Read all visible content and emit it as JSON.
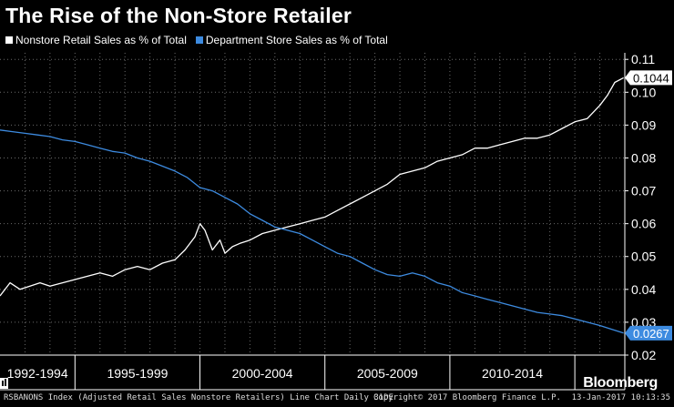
{
  "colors": {
    "nonstore": "#ffffff",
    "department": "#3d8be0",
    "grid": "#6a6a6a",
    "background": "#000000"
  },
  "brand": "Bloomberg",
  "brand_icon": "bloomberg-terminal-icon",
  "footer": {
    "left": "RSBANONS Index (Adjusted Retail Sales Nonstore Retailers) Line Chart  Daily 31DE",
    "center": "Copyright© 2017 Bloomberg Finance L.P.",
    "right": "13-Jan-2017 10:13:35"
  },
  "chart_data": {
    "type": "line",
    "title": "The Rise of the Non-Store Retailer",
    "xlim": [
      1992.0,
      2017.0
    ],
    "ylim": [
      0.02,
      0.112
    ],
    "y_ticks": [
      0.02,
      0.03,
      0.04,
      0.05,
      0.06,
      0.07,
      0.08,
      0.09,
      0.1,
      0.11
    ],
    "y_tick_labels": [
      "0.02",
      "0.03",
      "0.04",
      "0.05",
      "0.06",
      "0.07",
      "0.08",
      "0.09",
      "0.10",
      "0.11"
    ],
    "x_groups": [
      {
        "label": "1992-1994",
        "from": 1992.0,
        "to": 1995.0
      },
      {
        "label": "1995-1999",
        "from": 1995.0,
        "to": 2000.0
      },
      {
        "label": "2000-2004",
        "from": 2000.0,
        "to": 2005.0
      },
      {
        "label": "2005-2009",
        "from": 2005.0,
        "to": 2010.0
      },
      {
        "label": "2010-2014",
        "from": 2010.0,
        "to": 2015.0
      },
      {
        "label": "",
        "from": 2015.0,
        "to": 2017.0
      }
    ],
    "grid": true,
    "legend_position": "top-left",
    "series": [
      {
        "name": "Nonstore Retail Sales as % of Total",
        "color": "#ffffff",
        "last_value_label": "0.1044",
        "x": [
          1992.0,
          1992.4,
          1992.8,
          1993.2,
          1993.6,
          1994.0,
          1994.5,
          1995.0,
          1995.5,
          1996.0,
          1996.5,
          1997.0,
          1997.5,
          1998.0,
          1998.5,
          1999.0,
          1999.4,
          1999.8,
          2000.0,
          2000.2,
          2000.5,
          2000.8,
          2001.0,
          2001.3,
          2001.6,
          2002.0,
          2002.5,
          2003.0,
          2003.5,
          2004.0,
          2004.5,
          2005.0,
          2005.5,
          2006.0,
          2006.5,
          2007.0,
          2007.5,
          2008.0,
          2008.5,
          2009.0,
          2009.5,
          2010.0,
          2010.5,
          2011.0,
          2011.5,
          2012.0,
          2012.5,
          2013.0,
          2013.5,
          2014.0,
          2014.5,
          2015.0,
          2015.5,
          2016.0,
          2016.3,
          2016.6,
          2016.95
        ],
        "y": [
          0.038,
          0.042,
          0.04,
          0.041,
          0.042,
          0.041,
          0.042,
          0.043,
          0.044,
          0.045,
          0.044,
          0.046,
          0.047,
          0.046,
          0.048,
          0.049,
          0.052,
          0.056,
          0.06,
          0.058,
          0.052,
          0.055,
          0.051,
          0.053,
          0.054,
          0.055,
          0.057,
          0.058,
          0.059,
          0.06,
          0.061,
          0.062,
          0.064,
          0.066,
          0.068,
          0.07,
          0.072,
          0.075,
          0.076,
          0.077,
          0.079,
          0.08,
          0.081,
          0.083,
          0.083,
          0.084,
          0.085,
          0.086,
          0.086,
          0.087,
          0.089,
          0.091,
          0.092,
          0.096,
          0.099,
          0.103,
          0.1044
        ]
      },
      {
        "name": "Department Store Sales as % of Total",
        "color": "#3d8be0",
        "last_value_label": "0.0267",
        "x": [
          1992.0,
          1992.5,
          1993.0,
          1993.5,
          1994.0,
          1994.5,
          1995.0,
          1995.5,
          1996.0,
          1996.5,
          1997.0,
          1997.5,
          1998.0,
          1998.5,
          1999.0,
          1999.5,
          2000.0,
          2000.5,
          2001.0,
          2001.5,
          2002.0,
          2002.5,
          2003.0,
          2003.5,
          2004.0,
          2004.5,
          2005.0,
          2005.5,
          2006.0,
          2006.5,
          2007.0,
          2007.5,
          2008.0,
          2008.5,
          2009.0,
          2009.5,
          2010.0,
          2010.5,
          2011.0,
          2011.5,
          2012.0,
          2012.5,
          2013.0,
          2013.5,
          2014.0,
          2014.5,
          2015.0,
          2015.5,
          2016.0,
          2016.5,
          2016.95
        ],
        "y": [
          0.0885,
          0.088,
          0.0875,
          0.087,
          0.0865,
          0.0855,
          0.085,
          0.084,
          0.083,
          0.082,
          0.0815,
          0.08,
          0.079,
          0.0775,
          0.076,
          0.074,
          0.071,
          0.07,
          0.068,
          0.066,
          0.063,
          0.061,
          0.059,
          0.058,
          0.057,
          0.055,
          0.053,
          0.051,
          0.05,
          0.048,
          0.046,
          0.0445,
          0.044,
          0.045,
          0.044,
          0.042,
          0.041,
          0.039,
          0.038,
          0.037,
          0.036,
          0.035,
          0.034,
          0.033,
          0.0325,
          0.032,
          0.031,
          0.03,
          0.029,
          0.0278,
          0.0267
        ]
      }
    ]
  }
}
